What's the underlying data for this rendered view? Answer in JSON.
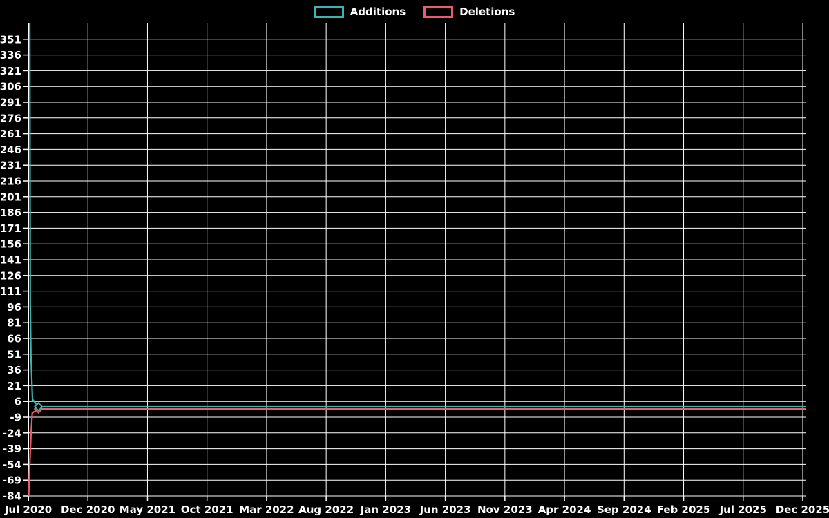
{
  "page": {
    "background": "#000000",
    "text_color": "#ffffff",
    "gridline_color": "#ffffff"
  },
  "legend": {
    "position": "top-center",
    "items": [
      {
        "label": "Additions",
        "color": "#3bb5b0"
      },
      {
        "label": "Deletions",
        "color": "#f0586c"
      }
    ]
  },
  "chart_data": {
    "type": "line",
    "title": "",
    "grid": true,
    "background": "#000000",
    "legend_position": "top-center",
    "x_axis": {
      "tick_labels": [
        "Jul 2020",
        "Dec 2020",
        "May 2021",
        "Oct 2021",
        "Mar 2022",
        "Aug 2022",
        "Jan 2023",
        "Jun 2023",
        "Nov 2023",
        "Apr 2024",
        "Sep 2024",
        "Feb 2025",
        "Jul 2025",
        "Dec 2025"
      ],
      "months_per_tick": 5,
      "start": "Jul 2020",
      "end": "Dec 2025"
    },
    "y_axis": {
      "tick_labels": [
        351,
        336,
        321,
        306,
        291,
        276,
        261,
        246,
        231,
        216,
        201,
        186,
        171,
        156,
        141,
        126,
        111,
        96,
        81,
        66,
        51,
        36,
        21,
        6,
        -9,
        -24,
        -39,
        -54,
        -69,
        -84
      ],
      "tick_step": 15,
      "top_value": 366,
      "bottom_value": -84
    },
    "series": [
      {
        "name": "Additions",
        "color": "#3bb5b0",
        "marker": "open-diamond",
        "marker_point": [
          0.85,
          0.9
        ],
        "points_month_value": [
          [
            0.12,
            366
          ],
          [
            0.16,
            100
          ],
          [
            0.22,
            50
          ],
          [
            0.35,
            8
          ],
          [
            0.85,
            0.9
          ],
          [
            65.27,
            0.9
          ]
        ]
      },
      {
        "name": "Deletions",
        "color": "#f0586c",
        "marker": "open-diamond",
        "marker_point": [
          0.85,
          -1.2
        ],
        "points_month_value": [
          [
            0.03,
            -84
          ],
          [
            0.12,
            -54
          ],
          [
            0.23,
            -24
          ],
          [
            0.33,
            -5
          ],
          [
            0.85,
            -1.2
          ],
          [
            65.27,
            -1.2
          ]
        ]
      }
    ],
    "summary": "Additions spike to ~366 at Jul 2020 then flatten to ~0 through Dec 2025; deletions dip to -84 at Jul 2020 then flatten to ~0."
  }
}
